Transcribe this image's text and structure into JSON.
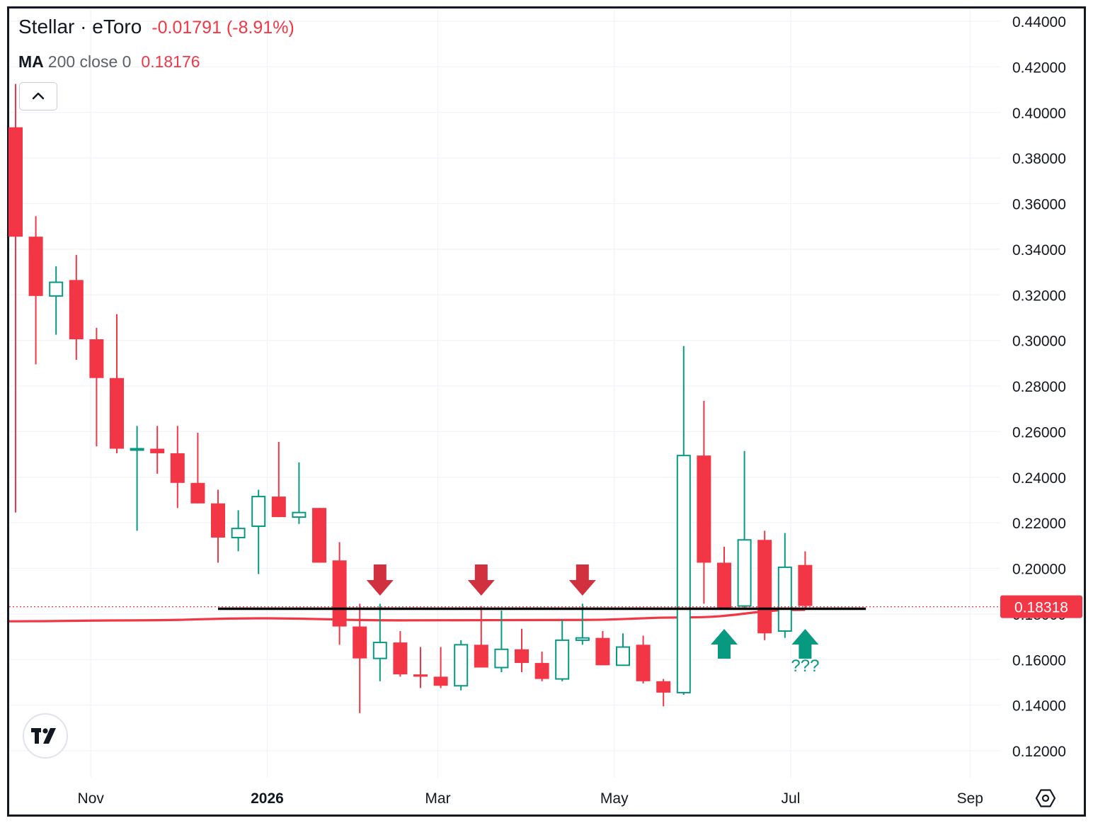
{
  "header": {
    "symbol": "Stellar · eToro",
    "change": "-0.01791 (-8.91%)"
  },
  "indicator": {
    "name": "MA",
    "params": "200 close 0",
    "value": "0.18176"
  },
  "colors": {
    "up": "#089981",
    "down": "#f23645",
    "ma": "#f23645",
    "support_line": "#000000",
    "arrow_down": "#d1303f",
    "arrow_up": "#089981",
    "grid": "#f0f3fa",
    "axis_text": "#131722"
  },
  "icons": {
    "collapse": "chevron-up-icon",
    "logo": "tradingview-logo-icon",
    "settings": "settings-hexagon-icon"
  },
  "chart_data": {
    "type": "candlestick",
    "title": "Stellar · eToro",
    "interval": "weekly",
    "ylim": [
      0.11,
      0.445
    ],
    "y_ticks": [
      "0.44000",
      "0.42000",
      "0.40000",
      "0.38000",
      "0.36000",
      "0.34000",
      "0.32000",
      "0.30000",
      "0.28000",
      "0.26000",
      "0.24000",
      "0.22000",
      "0.20000",
      "0.18000",
      "0.16000",
      "0.14000",
      "0.12000"
    ],
    "x_ticks": [
      "Nov",
      "2026",
      "Mar",
      "May",
      "Jul",
      "Sep"
    ],
    "x_tick_dates": [
      "2025-11-01",
      "2026-01-01",
      "2026-03-01",
      "2026-05-01",
      "2026-07-01",
      "2026-09-01"
    ],
    "grid": true,
    "last_price": "0.18318",
    "candles": [
      {
        "date": "2025-10-06",
        "o": 0.3935,
        "h": 0.4125,
        "l": 0.2245,
        "c": 0.3455
      },
      {
        "date": "2025-10-13",
        "o": 0.3455,
        "h": 0.3545,
        "l": 0.2895,
        "c": 0.3195
      },
      {
        "date": "2025-10-20",
        "o": 0.3195,
        "h": 0.3325,
        "l": 0.3025,
        "c": 0.3255
      },
      {
        "date": "2025-10-27",
        "o": 0.3265,
        "h": 0.3375,
        "l": 0.2915,
        "c": 0.3005
      },
      {
        "date": "2025-11-03",
        "o": 0.3005,
        "h": 0.3055,
        "l": 0.2535,
        "c": 0.2835
      },
      {
        "date": "2025-11-10",
        "o": 0.2835,
        "h": 0.3115,
        "l": 0.2505,
        "c": 0.2525
      },
      {
        "date": "2025-11-17",
        "o": 0.2525,
        "h": 0.2625,
        "l": 0.2165,
        "c": 0.2525
      },
      {
        "date": "2025-11-24",
        "o": 0.2525,
        "h": 0.2625,
        "l": 0.2415,
        "c": 0.2505
      },
      {
        "date": "2025-12-01",
        "o": 0.2505,
        "h": 0.2625,
        "l": 0.2265,
        "c": 0.2375
      },
      {
        "date": "2025-12-08",
        "o": 0.2375,
        "h": 0.2595,
        "l": 0.2285,
        "c": 0.2285
      },
      {
        "date": "2025-12-15",
        "o": 0.2285,
        "h": 0.2345,
        "l": 0.2025,
        "c": 0.2135
      },
      {
        "date": "2025-12-22",
        "o": 0.2135,
        "h": 0.2255,
        "l": 0.2075,
        "c": 0.2175
      },
      {
        "date": "2025-12-29",
        "o": 0.2185,
        "h": 0.2345,
        "l": 0.1975,
        "c": 0.2315
      },
      {
        "date": "2026-01-05",
        "o": 0.2315,
        "h": 0.2555,
        "l": 0.2225,
        "c": 0.2225
      },
      {
        "date": "2026-01-12",
        "o": 0.2225,
        "h": 0.2465,
        "l": 0.2195,
        "c": 0.2245
      },
      {
        "date": "2026-01-19",
        "o": 0.2265,
        "h": 0.2265,
        "l": 0.2025,
        "c": 0.2025
      },
      {
        "date": "2026-01-26",
        "o": 0.2035,
        "h": 0.2115,
        "l": 0.1665,
        "c": 0.1745
      },
      {
        "date": "2026-02-02",
        "o": 0.1745,
        "h": 0.1845,
        "l": 0.1365,
        "c": 0.1605
      },
      {
        "date": "2026-02-09",
        "o": 0.1605,
        "h": 0.1845,
        "l": 0.1505,
        "c": 0.1675
      },
      {
        "date": "2026-02-16",
        "o": 0.1675,
        "h": 0.1725,
        "l": 0.1525,
        "c": 0.1535
      },
      {
        "date": "2026-02-23",
        "o": 0.1535,
        "h": 0.1655,
        "l": 0.1475,
        "c": 0.1525
      },
      {
        "date": "2026-03-02",
        "o": 0.1525,
        "h": 0.1655,
        "l": 0.1475,
        "c": 0.1485
      },
      {
        "date": "2026-03-09",
        "o": 0.1485,
        "h": 0.1685,
        "l": 0.1465,
        "c": 0.1665
      },
      {
        "date": "2026-03-16",
        "o": 0.1665,
        "h": 0.1835,
        "l": 0.1565,
        "c": 0.1565
      },
      {
        "date": "2026-03-23",
        "o": 0.1565,
        "h": 0.1815,
        "l": 0.1545,
        "c": 0.1645
      },
      {
        "date": "2026-03-30",
        "o": 0.1645,
        "h": 0.1735,
        "l": 0.1545,
        "c": 0.1585
      },
      {
        "date": "2026-04-06",
        "o": 0.1585,
        "h": 0.1635,
        "l": 0.1505,
        "c": 0.1515
      },
      {
        "date": "2026-04-13",
        "o": 0.1515,
        "h": 0.1775,
        "l": 0.1505,
        "c": 0.1685
      },
      {
        "date": "2026-04-20",
        "o": 0.1685,
        "h": 0.1845,
        "l": 0.1665,
        "c": 0.1695
      },
      {
        "date": "2026-04-27",
        "o": 0.1695,
        "h": 0.1725,
        "l": 0.1575,
        "c": 0.1575
      },
      {
        "date": "2026-05-04",
        "o": 0.1575,
        "h": 0.1715,
        "l": 0.1575,
        "c": 0.1655
      },
      {
        "date": "2026-05-11",
        "o": 0.1665,
        "h": 0.1705,
        "l": 0.1495,
        "c": 0.1505
      },
      {
        "date": "2026-05-18",
        "o": 0.1505,
        "h": 0.1515,
        "l": 0.1395,
        "c": 0.1455
      },
      {
        "date": "2026-05-25",
        "o": 0.1455,
        "h": 0.2975,
        "l": 0.1445,
        "c": 0.2495
      },
      {
        "date": "2026-06-01",
        "o": 0.2495,
        "h": 0.2735,
        "l": 0.1845,
        "c": 0.2025
      },
      {
        "date": "2026-06-08",
        "o": 0.2025,
        "h": 0.2095,
        "l": 0.1825,
        "c": 0.1825
      },
      {
        "date": "2026-06-15",
        "o": 0.1835,
        "h": 0.2515,
        "l": 0.1825,
        "c": 0.2125
      },
      {
        "date": "2026-06-22",
        "o": 0.2125,
        "h": 0.2165,
        "l": 0.1685,
        "c": 0.1715
      },
      {
        "date": "2026-06-29",
        "o": 0.1725,
        "h": 0.2155,
        "l": 0.1695,
        "c": 0.2005
      },
      {
        "date": "2026-07-06",
        "o": 0.2015,
        "h": 0.2075,
        "l": 0.1825,
        "c": 0.1835
      }
    ],
    "moving_average": {
      "name": "MA",
      "params": "200 close 0",
      "points": [
        {
          "date": "2025-10-06",
          "v": 0.1768
        },
        {
          "date": "2025-11-17",
          "v": 0.1772
        },
        {
          "date": "2025-12-29",
          "v": 0.1781
        },
        {
          "date": "2026-02-16",
          "v": 0.1772
        },
        {
          "date": "2026-04-20",
          "v": 0.1774
        },
        {
          "date": "2026-05-25",
          "v": 0.1785
        },
        {
          "date": "2026-07-06",
          "v": 0.1818
        }
      ]
    },
    "support_line": {
      "value": 0.1823,
      "from": "2025-12-15",
      "to": "2026-07-27"
    },
    "annotations": {
      "arrows_down": [
        {
          "date": "2026-02-09"
        },
        {
          "date": "2026-03-16"
        },
        {
          "date": "2026-04-20"
        }
      ],
      "arrows_up": [
        {
          "date": "2026-06-08"
        },
        {
          "date": "2026-07-06"
        }
      ],
      "note": {
        "text": "???",
        "date": "2026-07-06"
      }
    }
  }
}
